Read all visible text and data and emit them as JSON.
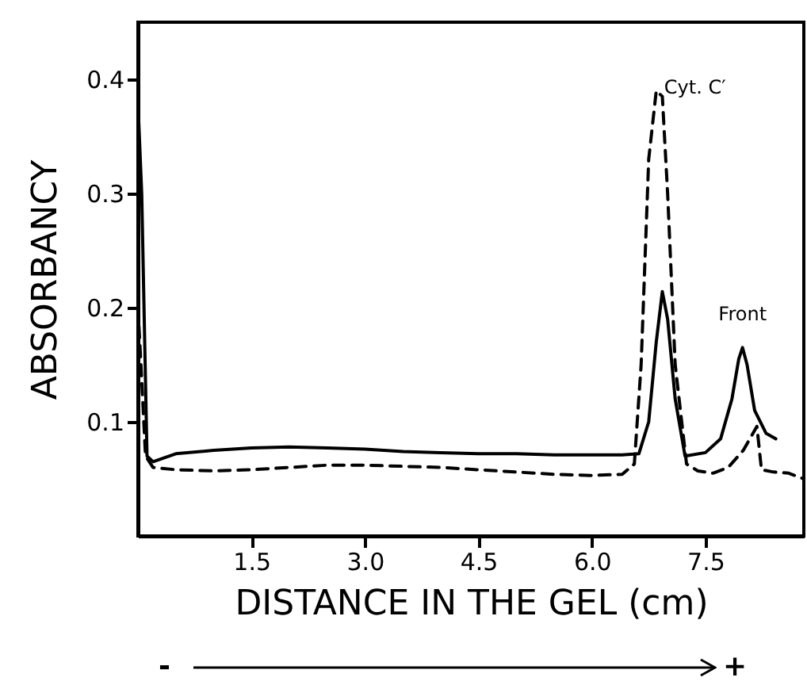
{
  "chart_data": {
    "type": "line",
    "xlabel": "DISTANCE IN THE GEL (cm)",
    "ylabel": "ABSORBANCY",
    "xlim": [
      0,
      8.8
    ],
    "ylim": [
      0,
      0.45
    ],
    "xticks": [
      1.5,
      {
        "value": 3,
        "label": "3.0"
      },
      4.5,
      {
        "value": 6,
        "label": "6.0"
      },
      7.5
    ],
    "yticks": [
      0.1,
      0.2,
      0.3,
      0.4
    ],
    "series": [
      {
        "color": "#000000",
        "line_style": "solid",
        "x": [
          0,
          0.05,
          0.12,
          0.2,
          0.5,
          1.0,
          1.5,
          2.0,
          2.5,
          3.0,
          3.5,
          4.0,
          4.5,
          5.0,
          5.5,
          6.0,
          6.4,
          6.62,
          6.75,
          6.85,
          6.93,
          7.0,
          7.1,
          7.23,
          7.5,
          7.7,
          7.85,
          7.94,
          7.99,
          8.05,
          8.15,
          8.3,
          8.43
        ],
        "values": [
          0.38,
          0.3,
          0.07,
          0.065,
          0.072,
          0.075,
          0.077,
          0.078,
          0.077,
          0.076,
          0.074,
          0.073,
          0.072,
          0.072,
          0.071,
          0.071,
          0.071,
          0.072,
          0.1,
          0.17,
          0.214,
          0.19,
          0.12,
          0.07,
          0.073,
          0.085,
          0.12,
          0.155,
          0.165,
          0.15,
          0.11,
          0.09,
          0.085
        ]
      },
      {
        "color": "#000000",
        "line_style": "dashed",
        "x": [
          0,
          0.04,
          0.1,
          0.2,
          0.5,
          1.0,
          1.5,
          2.0,
          2.5,
          3.0,
          3.5,
          4.0,
          4.5,
          5.0,
          5.5,
          6.0,
          6.4,
          6.56,
          6.65,
          6.75,
          6.85,
          6.93,
          7.0,
          7.1,
          7.25,
          7.4,
          7.6,
          7.8,
          8.0,
          8.18,
          8.24,
          8.4,
          8.6,
          8.8
        ],
        "values": [
          0.2,
          0.15,
          0.07,
          0.06,
          0.058,
          0.057,
          0.058,
          0.06,
          0.062,
          0.062,
          0.061,
          0.06,
          0.058,
          0.056,
          0.054,
          0.053,
          0.054,
          0.063,
          0.15,
          0.33,
          0.39,
          0.385,
          0.3,
          0.15,
          0.063,
          0.057,
          0.055,
          0.06,
          0.075,
          0.096,
          0.058,
          0.056,
          0.055,
          0.05
        ]
      }
    ],
    "annotations": [
      {
        "text": "Cyt. C′",
        "x": 6.85,
        "y": 0.39
      },
      {
        "text": "Front",
        "x": 7.99,
        "y": 0.165
      },
      "-",
      "+"
    ]
  }
}
